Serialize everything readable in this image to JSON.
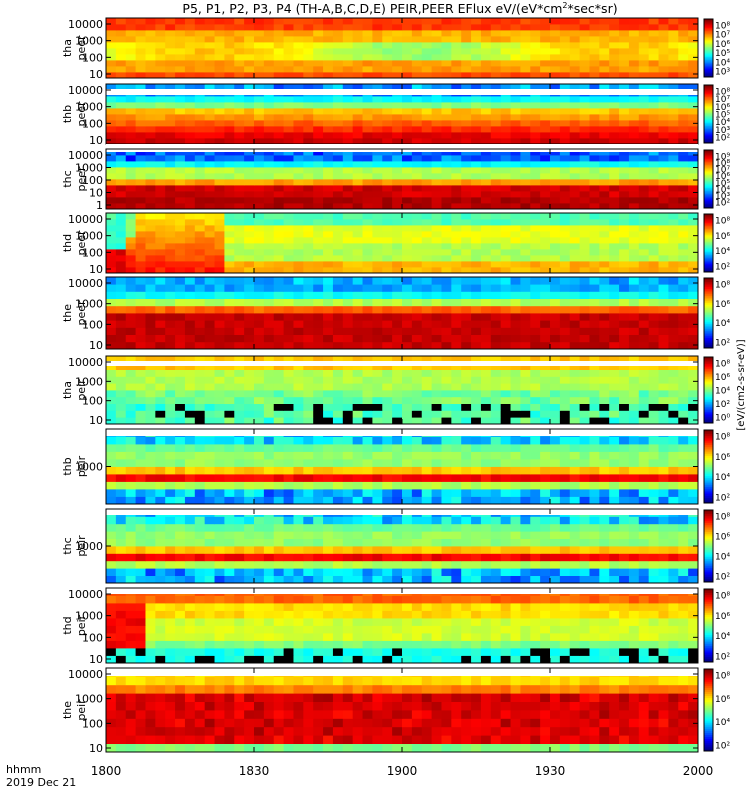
{
  "chart_data": {
    "type": "heatmap",
    "title": "P5, P1, P2, P3, P4 (TH-A,B,C,D,E) PEIR,PEER EFlux eV/(eV*cm",
    "title_sup": "2",
    "title_end": "*sec*sr)",
    "x_ticks": [
      "1800",
      "1830",
      "1900",
      "1930",
      "2000"
    ],
    "xaxis_label_line1": "hhmm",
    "xaxis_label_line2": "2019 Dec 21",
    "xlim_hhmm": [
      "1800",
      "2000"
    ],
    "colorbar_units": "[eV/(cm2-s-sr-eV)]",
    "panels": [
      {
        "label_line1": "tha",
        "label_line2": "peer",
        "yticks": [
          "10",
          "100",
          "1000",
          "10000"
        ],
        "cb_ticks": [
          "10⁸",
          "10⁷",
          "10⁶",
          "10⁵",
          "10⁴",
          "10³"
        ],
        "colorscale": "jet",
        "log_y": true,
        "pattern": "A"
      },
      {
        "label_line1": "thb",
        "label_line2": "peer",
        "yticks": [
          "10",
          "100",
          "1000",
          "10000"
        ],
        "cb_ticks": [
          "10⁸",
          "10⁷",
          "10⁶",
          "10⁵",
          "10⁴",
          "10³",
          "10²"
        ],
        "colorscale": "jet",
        "log_y": true,
        "pattern": "B"
      },
      {
        "label_line1": "thc",
        "label_line2": "peer",
        "yticks": [
          "1",
          "10",
          "100",
          "1000",
          "10000"
        ],
        "cb_ticks": [
          "10⁹",
          "10⁸",
          "10⁷",
          "10⁶",
          "10⁵",
          "10⁴",
          "10³",
          "10²"
        ],
        "colorscale": "jet",
        "log_y": true,
        "pattern": "C"
      },
      {
        "label_line1": "thd",
        "label_line2": "peer",
        "yticks": [
          "10",
          "100",
          "1000",
          "10000"
        ],
        "cb_ticks": [
          "10⁸",
          "10⁶",
          "10⁴",
          "10²"
        ],
        "colorscale": "jet",
        "log_y": true,
        "pattern": "D"
      },
      {
        "label_line1": "the",
        "label_line2": "peer",
        "yticks": [
          "10",
          "100",
          "1000",
          "10000"
        ],
        "cb_ticks": [
          "10⁸",
          "10⁶",
          "10⁴",
          "10²"
        ],
        "colorscale": "jet",
        "log_y": true,
        "pattern": "E"
      },
      {
        "label_line1": "tha",
        "label_line2": "peir",
        "yticks": [
          "10",
          "100",
          "1000",
          "10000"
        ],
        "cb_ticks": [
          "10⁸",
          "10⁶",
          "10⁴",
          "10²",
          "10⁰"
        ],
        "colorscale": "jet",
        "log_y": true,
        "pattern": "F"
      },
      {
        "label_line1": "thb",
        "label_line2": "peir",
        "yticks": [
          "1000"
        ],
        "cb_ticks": [
          "10⁸",
          "10⁶",
          "10⁴",
          "10²"
        ],
        "colorscale": "jet",
        "log_y": true,
        "pattern": "G"
      },
      {
        "label_line1": "thc",
        "label_line2": "peir",
        "yticks": [
          "1000"
        ],
        "cb_ticks": [
          "10⁸",
          "10⁶",
          "10⁴",
          "10²"
        ],
        "colorscale": "jet",
        "log_y": true,
        "pattern": "H"
      },
      {
        "label_line1": "thd",
        "label_line2": "peir",
        "yticks": [
          "10",
          "100",
          "1000",
          "10000"
        ],
        "cb_ticks": [
          "10⁸",
          "10⁶",
          "10⁴",
          "10²"
        ],
        "colorscale": "jet",
        "log_y": true,
        "pattern": "I"
      },
      {
        "label_line1": "the",
        "label_line2": "peir",
        "yticks": [
          "10",
          "100",
          "1000",
          "10000"
        ],
        "cb_ticks": [
          "10⁸",
          "10⁶",
          "10⁴",
          "10²"
        ],
        "colorscale": "jet",
        "log_y": true,
        "pattern": "J"
      }
    ]
  }
}
